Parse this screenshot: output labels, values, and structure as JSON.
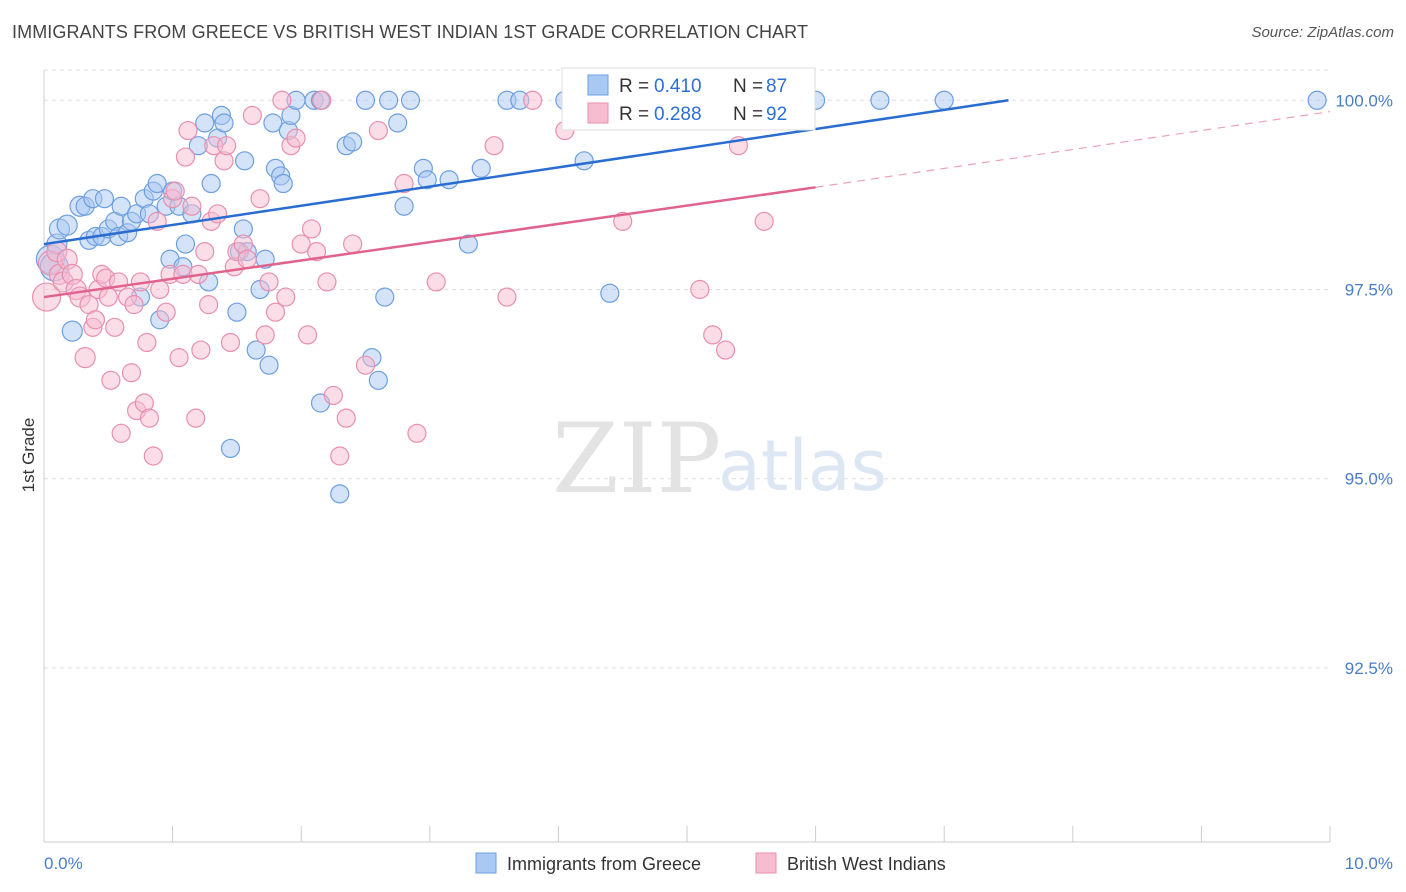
{
  "title": "IMMIGRANTS FROM GREECE VS BRITISH WEST INDIAN 1ST GRADE CORRELATION CHART",
  "source": "Source: ZipAtlas.com",
  "watermark": {
    "zip": "ZIP",
    "atlas": "atlas"
  },
  "colors": {
    "blue_fill": "#a9c8f2",
    "blue_stroke": "#6d9fe0",
    "blue_line": "#2a6dd1",
    "pink_fill": "#f6bcd0",
    "pink_stroke": "#e88fb0",
    "pink_line": "#e0638e",
    "grid": "#dddddd",
    "tick_label": "#4a7cc9"
  },
  "legend": {
    "r_label": "R = ",
    "n_label": "N = ",
    "series": [
      {
        "r": "0.410",
        "n": "87"
      },
      {
        "r": "0.288",
        "n": "92"
      }
    ]
  },
  "chart_data": {
    "type": "scatter",
    "ylabel": "1st Grade",
    "x_tick_labels": [
      "0.0%",
      "10.0%"
    ],
    "y_tick_labels": [
      "100.0%",
      "97.5%",
      "95.0%",
      "92.5%"
    ],
    "y_ticks": [
      100.0,
      97.5,
      95.0,
      92.5
    ],
    "xlim": [
      0.0,
      10.0
    ],
    "ylim": [
      90.2,
      100.4
    ],
    "grid": true,
    "legend_position": "top-center",
    "series": [
      {
        "name": "Immigrants from Greece",
        "color": "blue",
        "trend": {
          "x": [
            0.0,
            7.5
          ],
          "y": [
            98.1,
            100.0
          ]
        },
        "points": [
          [
            0.05,
            97.9,
            14
          ],
          [
            0.08,
            97.8,
            14
          ],
          [
            0.1,
            98.1,
            10
          ],
          [
            0.12,
            98.3,
            10
          ],
          [
            0.18,
            98.35,
            10
          ],
          [
            0.22,
            96.95,
            10
          ],
          [
            0.28,
            98.6,
            10
          ],
          [
            0.32,
            98.6,
            9
          ],
          [
            0.35,
            98.15,
            9
          ],
          [
            0.38,
            98.7,
            9
          ],
          [
            0.4,
            98.2,
            9
          ],
          [
            0.45,
            98.2,
            9
          ],
          [
            0.47,
            98.7,
            9
          ],
          [
            0.5,
            98.3,
            9
          ],
          [
            0.55,
            98.4,
            9
          ],
          [
            0.58,
            98.2,
            9
          ],
          [
            0.6,
            98.6,
            9
          ],
          [
            0.65,
            98.25,
            9
          ],
          [
            0.68,
            98.4,
            9
          ],
          [
            0.72,
            98.5,
            9
          ],
          [
            0.75,
            97.4,
            9
          ],
          [
            0.78,
            98.7,
            9
          ],
          [
            0.82,
            98.5,
            9
          ],
          [
            0.85,
            98.8,
            9
          ],
          [
            0.88,
            98.9,
            9
          ],
          [
            0.9,
            97.1,
            9
          ],
          [
            0.95,
            98.6,
            9
          ],
          [
            0.98,
            97.9,
            9
          ],
          [
            1.0,
            98.8,
            9
          ],
          [
            1.05,
            98.6,
            9
          ],
          [
            1.08,
            97.8,
            9
          ],
          [
            1.1,
            98.1,
            9
          ],
          [
            1.15,
            98.5,
            9
          ],
          [
            1.2,
            99.4,
            9
          ],
          [
            1.25,
            99.7,
            9
          ],
          [
            1.28,
            97.6,
            9
          ],
          [
            1.3,
            98.9,
            9
          ],
          [
            1.35,
            99.5,
            9
          ],
          [
            1.38,
            99.8,
            9
          ],
          [
            1.4,
            99.7,
            9
          ],
          [
            1.45,
            95.4,
            9
          ],
          [
            1.5,
            97.2,
            9
          ],
          [
            1.52,
            98.0,
            9
          ],
          [
            1.55,
            98.3,
            9
          ],
          [
            1.56,
            99.2,
            9
          ],
          [
            1.58,
            98.0,
            9
          ],
          [
            1.65,
            96.7,
            9
          ],
          [
            1.68,
            97.5,
            9
          ],
          [
            1.72,
            97.9,
            9
          ],
          [
            1.75,
            96.5,
            9
          ],
          [
            1.78,
            99.7,
            9
          ],
          [
            1.8,
            99.1,
            9
          ],
          [
            1.84,
            99.0,
            9
          ],
          [
            1.86,
            98.9,
            9
          ],
          [
            1.9,
            99.6,
            9
          ],
          [
            1.92,
            99.8,
            9
          ],
          [
            1.96,
            100.0,
            9
          ],
          [
            2.1,
            100.0,
            9
          ],
          [
            2.15,
            100.0,
            9
          ],
          [
            2.15,
            96.0,
            9
          ],
          [
            2.3,
            94.8,
            9
          ],
          [
            2.35,
            99.4,
            9
          ],
          [
            2.4,
            99.45,
            9
          ],
          [
            2.5,
            100.0,
            9
          ],
          [
            2.55,
            96.6,
            9
          ],
          [
            2.6,
            96.3,
            9
          ],
          [
            2.65,
            97.4,
            9
          ],
          [
            2.68,
            100.0,
            9
          ],
          [
            2.75,
            99.7,
            9
          ],
          [
            2.8,
            98.6,
            9
          ],
          [
            2.85,
            100.0,
            9
          ],
          [
            2.95,
            99.1,
            9
          ],
          [
            2.98,
            98.95,
            9
          ],
          [
            3.15,
            98.95,
            9
          ],
          [
            3.3,
            98.1,
            9
          ],
          [
            3.4,
            99.1,
            9
          ],
          [
            3.6,
            100.0,
            9
          ],
          [
            3.7,
            100.0,
            9
          ],
          [
            4.05,
            100.0,
            9
          ],
          [
            4.2,
            99.2,
            9
          ],
          [
            4.4,
            97.45,
            9
          ],
          [
            4.6,
            100.0,
            9
          ],
          [
            4.75,
            100.0,
            9
          ],
          [
            6.0,
            100.0,
            9
          ],
          [
            6.5,
            100.0,
            9
          ],
          [
            7.0,
            100.0,
            9
          ],
          [
            9.9,
            100.0,
            9
          ]
        ]
      },
      {
        "name": "British West Indians",
        "color": "pink",
        "trend": {
          "x": [
            0.0,
            6.0
          ],
          "y": [
            97.4,
            98.85
          ]
        },
        "trend_dashed": {
          "x": [
            6.0,
            10.0
          ],
          "y": [
            98.85,
            99.85
          ]
        },
        "points": [
          [
            0.02,
            97.4,
            14
          ],
          [
            0.05,
            97.85,
            12
          ],
          [
            0.1,
            98.0,
            10
          ],
          [
            0.12,
            97.7,
            10
          ],
          [
            0.15,
            97.6,
            10
          ],
          [
            0.18,
            97.9,
            10
          ],
          [
            0.22,
            97.7,
            10
          ],
          [
            0.25,
            97.5,
            10
          ],
          [
            0.28,
            97.4,
            10
          ],
          [
            0.32,
            96.6,
            10
          ],
          [
            0.35,
            97.3,
            9
          ],
          [
            0.38,
            97.0,
            9
          ],
          [
            0.4,
            97.1,
            9
          ],
          [
            0.42,
            97.5,
            9
          ],
          [
            0.45,
            97.7,
            9
          ],
          [
            0.48,
            97.65,
            9
          ],
          [
            0.5,
            97.4,
            9
          ],
          [
            0.52,
            96.3,
            9
          ],
          [
            0.55,
            97.0,
            9
          ],
          [
            0.58,
            97.6,
            9
          ],
          [
            0.6,
            95.6,
            9
          ],
          [
            0.65,
            97.4,
            9
          ],
          [
            0.68,
            96.4,
            9
          ],
          [
            0.7,
            97.3,
            9
          ],
          [
            0.72,
            95.9,
            9
          ],
          [
            0.75,
            97.6,
            9
          ],
          [
            0.78,
            96.0,
            9
          ],
          [
            0.8,
            96.8,
            9
          ],
          [
            0.82,
            95.8,
            9
          ],
          [
            0.85,
            95.3,
            9
          ],
          [
            0.88,
            98.4,
            9
          ],
          [
            0.9,
            97.5,
            9
          ],
          [
            0.95,
            97.2,
            9
          ],
          [
            0.98,
            97.7,
            9
          ],
          [
            1.0,
            98.7,
            9
          ],
          [
            1.02,
            98.8,
            9
          ],
          [
            1.05,
            96.6,
            9
          ],
          [
            1.08,
            97.7,
            9
          ],
          [
            1.1,
            99.25,
            9
          ],
          [
            1.12,
            99.6,
            9
          ],
          [
            1.15,
            98.6,
            9
          ],
          [
            1.18,
            95.8,
            9
          ],
          [
            1.2,
            97.7,
            9
          ],
          [
            1.22,
            96.7,
            9
          ],
          [
            1.25,
            98.0,
            9
          ],
          [
            1.28,
            97.3,
            9
          ],
          [
            1.3,
            98.4,
            9
          ],
          [
            1.32,
            99.4,
            9
          ],
          [
            1.35,
            98.5,
            9
          ],
          [
            1.4,
            99.2,
            9
          ],
          [
            1.42,
            99.4,
            9
          ],
          [
            1.45,
            96.8,
            9
          ],
          [
            1.48,
            97.8,
            9
          ],
          [
            1.5,
            98.0,
            9
          ],
          [
            1.55,
            98.1,
            9
          ],
          [
            1.58,
            97.9,
            9
          ],
          [
            1.62,
            99.8,
            9
          ],
          [
            1.68,
            98.7,
            9
          ],
          [
            1.72,
            96.9,
            9
          ],
          [
            1.75,
            97.6,
            9
          ],
          [
            1.8,
            97.2,
            9
          ],
          [
            1.85,
            100.0,
            9
          ],
          [
            1.88,
            97.4,
            9
          ],
          [
            1.92,
            99.4,
            9
          ],
          [
            1.96,
            99.5,
            9
          ],
          [
            2.0,
            98.1,
            9
          ],
          [
            2.05,
            96.9,
            9
          ],
          [
            2.08,
            98.3,
            9
          ],
          [
            2.12,
            98.0,
            9
          ],
          [
            2.16,
            100.0,
            9
          ],
          [
            2.2,
            97.6,
            9
          ],
          [
            2.25,
            96.1,
            9
          ],
          [
            2.3,
            95.3,
            9
          ],
          [
            2.35,
            95.8,
            9
          ],
          [
            2.4,
            98.1,
            9
          ],
          [
            2.5,
            96.5,
            9
          ],
          [
            2.6,
            99.6,
            9
          ],
          [
            2.8,
            98.9,
            9
          ],
          [
            2.9,
            95.6,
            9
          ],
          [
            3.05,
            97.6,
            9
          ],
          [
            3.5,
            99.4,
            9
          ],
          [
            3.6,
            97.4,
            9
          ],
          [
            3.8,
            100.0,
            9
          ],
          [
            4.05,
            99.6,
            9
          ],
          [
            4.1,
            100.0,
            9
          ],
          [
            4.5,
            98.4,
            9
          ],
          [
            5.0,
            100.0,
            9
          ],
          [
            5.1,
            97.5,
            9
          ],
          [
            5.2,
            96.9,
            9
          ],
          [
            5.3,
            96.7,
            9
          ],
          [
            5.4,
            99.4,
            9
          ],
          [
            5.6,
            98.4,
            9
          ]
        ]
      }
    ]
  }
}
